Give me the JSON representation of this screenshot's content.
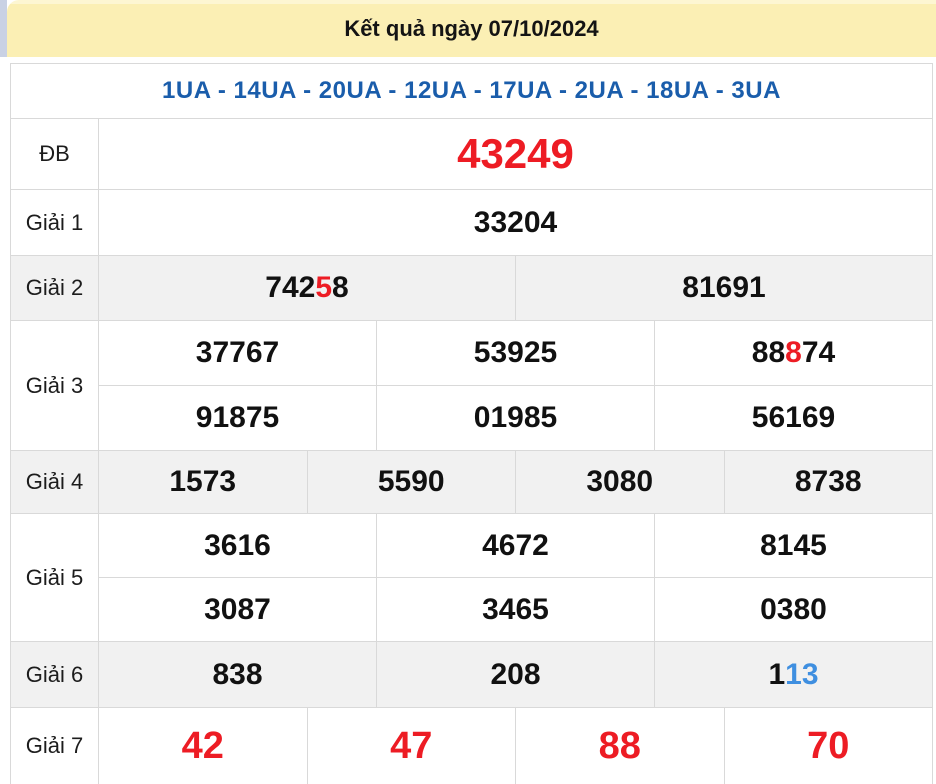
{
  "page": {
    "title": "Kết quả ngày 07/10/2024",
    "subtitle": "1UA - 14UA - 20UA - 12UA - 17UA - 2UA - 18UA - 3UA"
  },
  "colors": {
    "header_bg": "#fbefb4",
    "subtitle_blue": "#1a5dab",
    "accent_red": "#ed1c24",
    "accent_blue_digit": "#3f8fe0",
    "row_alt_bg": "#f1f1f1"
  },
  "results": [
    {
      "label": "ĐB",
      "key": "db",
      "shaded": false,
      "rows": [
        [
          [
            {
              "text": "43249",
              "color": "red"
            }
          ]
        ]
      ]
    },
    {
      "label": "Giải 1",
      "key": "g1",
      "shaded": false,
      "rows": [
        [
          [
            {
              "text": "33204"
            }
          ]
        ]
      ]
    },
    {
      "label": "Giải 2",
      "key": "g2",
      "shaded": true,
      "rows": [
        [
          [
            {
              "text": "742"
            },
            {
              "text": "5",
              "color": "red"
            },
            {
              "text": "8"
            }
          ],
          [
            {
              "text": "81691"
            }
          ]
        ]
      ]
    },
    {
      "label": "Giải 3",
      "key": "g3",
      "shaded": false,
      "rows": [
        [
          [
            {
              "text": "37767"
            }
          ],
          [
            {
              "text": "53925"
            }
          ],
          [
            {
              "text": "88"
            },
            {
              "text": "8",
              "color": "red"
            },
            {
              "text": "74"
            }
          ]
        ],
        [
          [
            {
              "text": "91875"
            }
          ],
          [
            {
              "text": "01985"
            }
          ],
          [
            {
              "text": "56169"
            }
          ]
        ]
      ]
    },
    {
      "label": "Giải 4",
      "key": "g4",
      "shaded": true,
      "rows": [
        [
          [
            {
              "text": "1573"
            }
          ],
          [
            {
              "text": "5590"
            }
          ],
          [
            {
              "text": "3080"
            }
          ],
          [
            {
              "text": "8738"
            }
          ]
        ]
      ]
    },
    {
      "label": "Giải 5",
      "key": "g5",
      "shaded": false,
      "rows": [
        [
          [
            {
              "text": "3616"
            }
          ],
          [
            {
              "text": "4672"
            }
          ],
          [
            {
              "text": "8145"
            }
          ]
        ],
        [
          [
            {
              "text": "3087"
            }
          ],
          [
            {
              "text": "3465"
            }
          ],
          [
            {
              "text": "0380"
            }
          ]
        ]
      ]
    },
    {
      "label": "Giải 6",
      "key": "g6",
      "shaded": true,
      "rows": [
        [
          [
            {
              "text": "838"
            }
          ],
          [
            {
              "text": "208"
            }
          ],
          [
            {
              "text": "1"
            },
            {
              "text": "13",
              "color": "blue"
            }
          ]
        ]
      ]
    },
    {
      "label": "Giải 7",
      "key": "g7",
      "shaded": false,
      "rows": [
        [
          [
            {
              "text": "42",
              "color": "red"
            }
          ],
          [
            {
              "text": "47",
              "color": "red"
            }
          ],
          [
            {
              "text": "88",
              "color": "red"
            }
          ],
          [
            {
              "text": "70",
              "color": "red"
            }
          ]
        ]
      ]
    }
  ]
}
